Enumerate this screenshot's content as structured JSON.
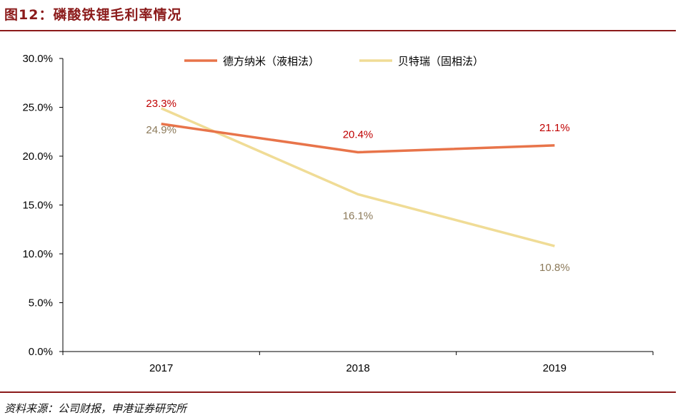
{
  "figure": {
    "title": "图12：磷酸铁锂毛利率情况",
    "source": "资料来源：公司财报，申港证券研究所"
  },
  "chart_data": {
    "type": "line",
    "title": "",
    "xlabel": "",
    "ylabel": "",
    "categories": [
      "2017",
      "2018",
      "2019"
    ],
    "ylim": [
      0,
      30
    ],
    "yticks": [
      0,
      5,
      10,
      15,
      20,
      25,
      30
    ],
    "ytick_labels": [
      "0.0%",
      "5.0%",
      "10.0%",
      "15.0%",
      "20.0%",
      "25.0%",
      "30.0%"
    ],
    "grid": false,
    "legend_position": "top",
    "series": [
      {
        "name": "德方纳米（液相法）",
        "values": [
          23.3,
          20.4,
          21.1
        ],
        "labels": [
          "23.3%",
          "20.4%",
          "21.1%"
        ],
        "color": "#E8744A",
        "label_color": "#C00000"
      },
      {
        "name": "贝特瑞（固相法）",
        "values": [
          24.9,
          16.1,
          10.8
        ],
        "labels": [
          "24.9%",
          "16.1%",
          "10.8%"
        ],
        "color": "#F0DC96",
        "label_color": "#8C7A5A"
      }
    ]
  }
}
